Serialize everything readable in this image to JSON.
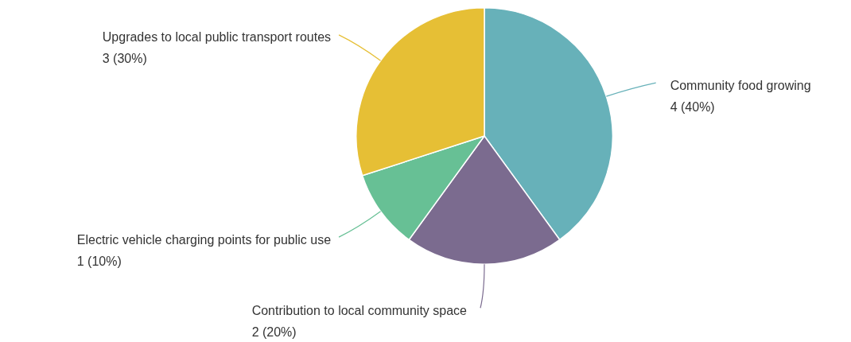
{
  "chart_data": {
    "type": "pie",
    "categories": [
      "Community food growing",
      "Contribution to local community space",
      "Electric vehicle charging points for public use",
      "Upgrades to local public transport routes"
    ],
    "values": [
      4,
      2,
      1,
      3
    ],
    "colors": [
      "#67b1b9",
      "#7b6b8f",
      "#67c095",
      "#e6bf35"
    ],
    "value_labels": [
      "4 (40%)",
      "2 (20%)",
      "1 (10%)",
      "3 (30%)"
    ]
  }
}
